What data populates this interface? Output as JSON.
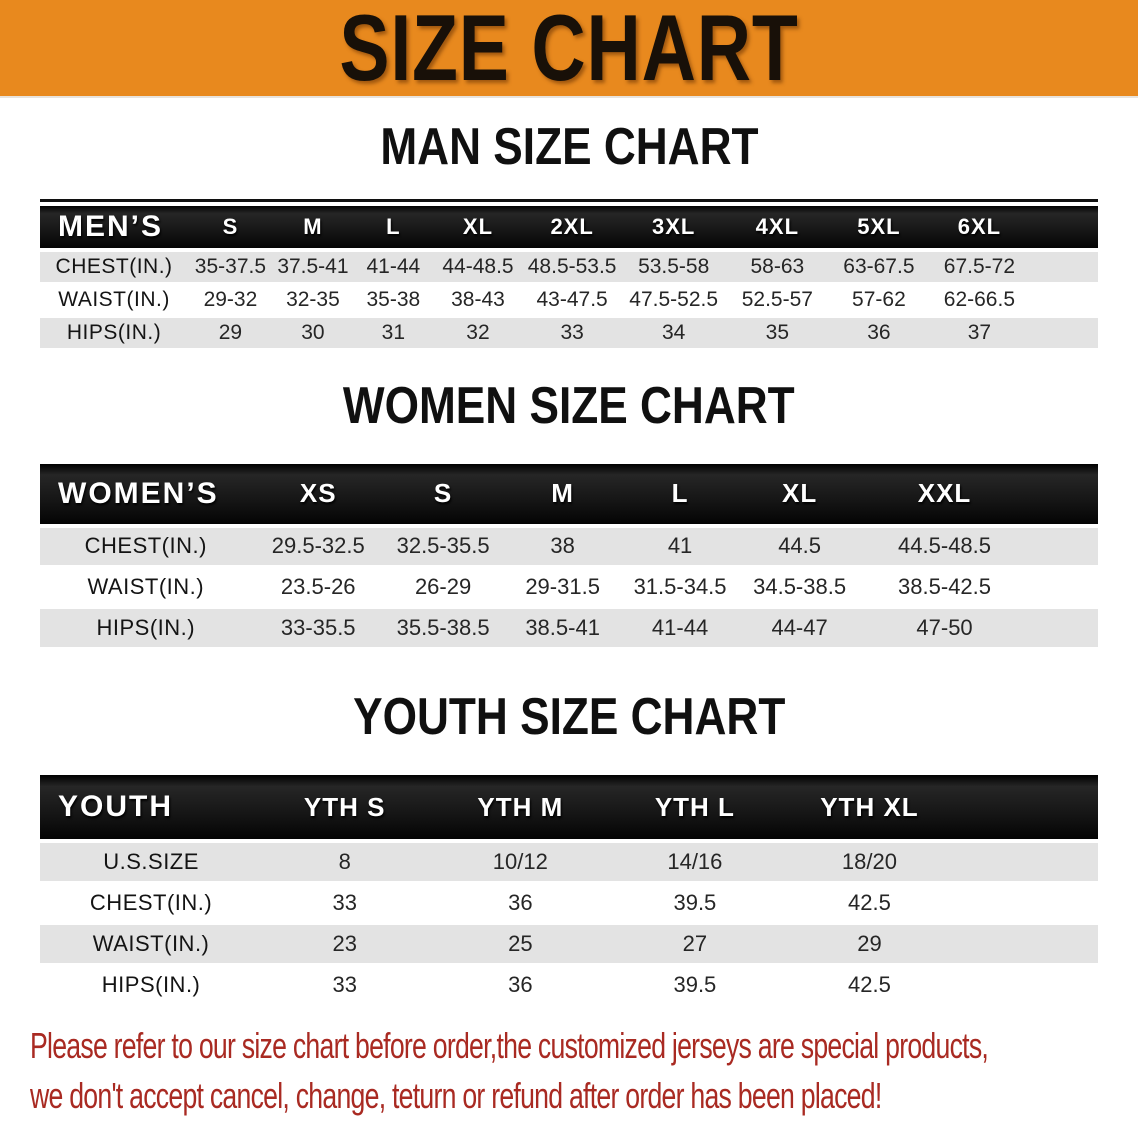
{
  "banner": {
    "title": "SIZE CHART"
  },
  "sections": [
    {
      "heading": "MAN SIZE CHART",
      "table": {
        "label": "MEN’S",
        "columns": [
          "S",
          "M",
          "L",
          "XL",
          "2XL",
          "3XL",
          "4XL",
          "5XL",
          "6XL"
        ],
        "rows": [
          {
            "label": "CHEST(IN.)",
            "values": [
              "35-37.5",
              "37.5-41",
              "41-44",
              "44-48.5",
              "48.5-53.5",
              "53.5-58",
              "58-63",
              "63-67.5",
              "67.5-72"
            ]
          },
          {
            "label": "WAIST(IN.)",
            "values": [
              "29-32",
              "32-35",
              "35-38",
              "38-43",
              "43-47.5",
              "47.5-52.5",
              "52.5-57",
              "57-62",
              "62-66.5"
            ]
          },
          {
            "label": "HIPS(IN.)",
            "values": [
              "29",
              "30",
              "31",
              "32",
              "33",
              "34",
              "35",
              "36",
              "37"
            ]
          }
        ]
      }
    },
    {
      "heading": "WOMEN SIZE CHART",
      "table": {
        "label": "WOMEN’S",
        "columns": [
          "XS",
          "S",
          "M",
          "L",
          "XL",
          "XXL"
        ],
        "rows": [
          {
            "label": "CHEST(IN.)",
            "values": [
              "29.5-32.5",
              "32.5-35.5",
              "38",
              "41",
              "44.5",
              "44.5-48.5"
            ]
          },
          {
            "label": "WAIST(IN.)",
            "values": [
              "23.5-26",
              "26-29",
              "29-31.5",
              "31.5-34.5",
              "34.5-38.5",
              "38.5-42.5"
            ]
          },
          {
            "label": "HIPS(IN.)",
            "values": [
              "33-35.5",
              "35.5-38.5",
              "38.5-41",
              "41-44",
              "44-47",
              "47-50"
            ]
          }
        ]
      }
    },
    {
      "heading": "YOUTH SIZE CHART",
      "table": {
        "label": "YOUTH",
        "columns": [
          "YTH S",
          "YTH M",
          "YTH L",
          "YTH XL"
        ],
        "rows": [
          {
            "label": "U.S.SIZE",
            "values": [
              "8",
              "10/12",
              "14/16",
              "18/20"
            ]
          },
          {
            "label": "CHEST(IN.)",
            "values": [
              "33",
              "36",
              "39.5",
              "42.5"
            ]
          },
          {
            "label": "WAIST(IN.)",
            "values": [
              "23",
              "25",
              "27",
              "29"
            ]
          },
          {
            "label": "HIPS(IN.)",
            "values": [
              "33",
              "36",
              "39.5",
              "42.5"
            ]
          }
        ]
      }
    }
  ],
  "disclaimer": {
    "line1": "Please refer to our size chart before order,the customized jerseys are special products,",
    "line2": "we don't accept cancel, change, teturn or refund after order has been placed!"
  },
  "colors": {
    "banner_bg": "#E8891E",
    "table_header_bg": "#151515",
    "row_stripe": "#E3E3E3",
    "disclaimer_text": "#A92A22"
  }
}
